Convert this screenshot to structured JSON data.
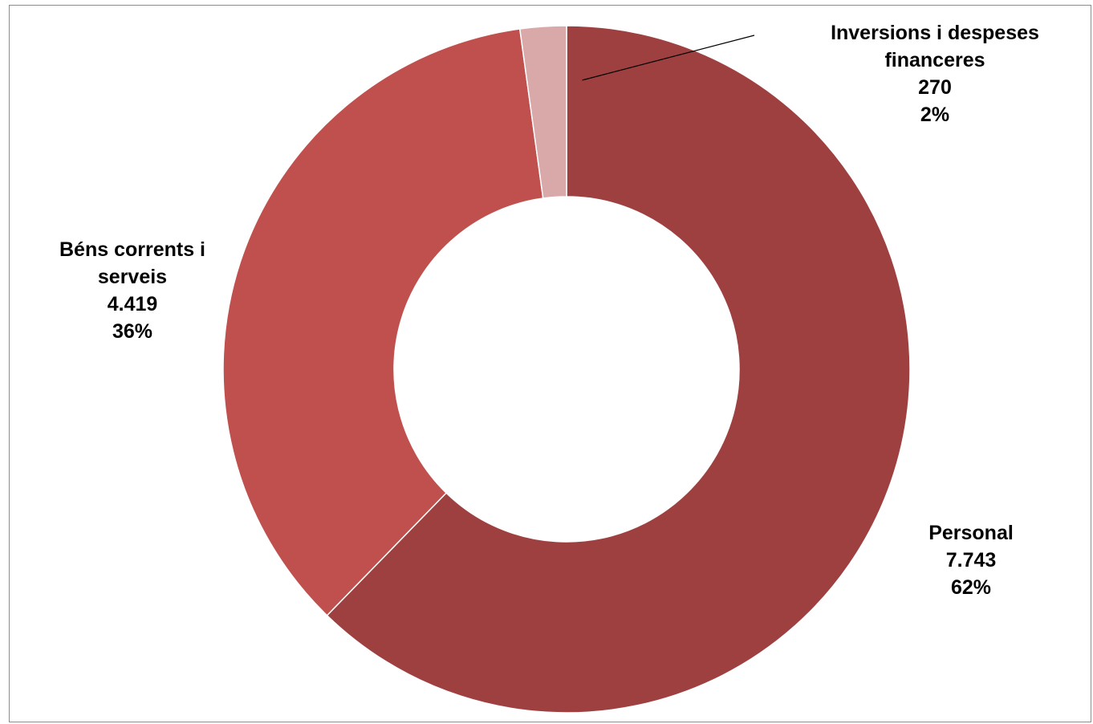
{
  "chart_data": {
    "type": "pie",
    "variant": "doughnut",
    "title": "",
    "slices": [
      {
        "name": "Personal",
        "value": 7743,
        "value_label": "7.743",
        "percent_label": "62%",
        "color": "#9e4040"
      },
      {
        "name": "Béns corrents i serveis",
        "value": 4419,
        "value_label": "4.419",
        "percent_label": "36%",
        "color": "#c0504d"
      },
      {
        "name": "Inversions i despeses financeres",
        "value": 270,
        "value_label": "270",
        "percent_label": "2%",
        "color": "#d9a9a9"
      }
    ],
    "labels": {
      "personal": {
        "line1": "Personal",
        "value": "7.743",
        "percent": "62%"
      },
      "bens": {
        "line1": "Béns corrents i",
        "line2": "serveis",
        "value": "4.419",
        "percent": "36%"
      },
      "inversions": {
        "line1": "Inversions i despeses",
        "line2": "financeres",
        "value": "270",
        "percent": "2%"
      }
    },
    "legend": "none",
    "start_angle": "top",
    "direction": "clockwise"
  }
}
